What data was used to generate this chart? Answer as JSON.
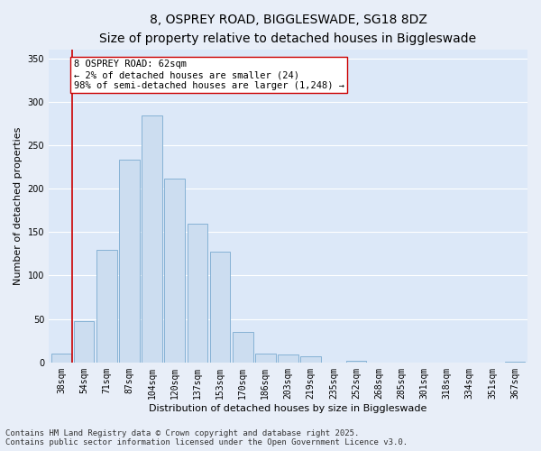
{
  "title_line1": "8, OSPREY ROAD, BIGGLESWADE, SG18 8DZ",
  "title_line2": "Size of property relative to detached houses in Biggleswade",
  "xlabel": "Distribution of detached houses by size in Biggleswade",
  "ylabel": "Number of detached properties",
  "bar_color": "#ccddf0",
  "bar_edge_color": "#7aaad0",
  "categories": [
    "38sqm",
    "54sqm",
    "71sqm",
    "87sqm",
    "104sqm",
    "120sqm",
    "137sqm",
    "153sqm",
    "170sqm",
    "186sqm",
    "203sqm",
    "219sqm",
    "235sqm",
    "252sqm",
    "268sqm",
    "285sqm",
    "301sqm",
    "318sqm",
    "334sqm",
    "351sqm",
    "367sqm"
  ],
  "values": [
    10,
    48,
    130,
    233,
    284,
    212,
    160,
    127,
    35,
    10,
    9,
    7,
    0,
    2,
    0,
    0,
    0,
    0,
    0,
    0,
    1
  ],
  "ylim": [
    0,
    360
  ],
  "yticks": [
    0,
    50,
    100,
    150,
    200,
    250,
    300,
    350
  ],
  "vline_x": 0.5,
  "vline_color": "#cc0000",
  "annotation_text": "8 OSPREY ROAD: 62sqm\n← 2% of detached houses are smaller (24)\n98% of semi-detached houses are larger (1,248) →",
  "annotation_box_color": "#ffffff",
  "annotation_box_edge": "#cc0000",
  "footer_line1": "Contains HM Land Registry data © Crown copyright and database right 2025.",
  "footer_line2": "Contains public sector information licensed under the Open Government Licence v3.0.",
  "fig_bg_color": "#e8eef8",
  "bg_color": "#dce8f8",
  "grid_color": "#ffffff",
  "title_fontsize": 10,
  "subtitle_fontsize": 9,
  "axis_label_fontsize": 8,
  "tick_fontsize": 7,
  "annotation_fontsize": 7.5,
  "footer_fontsize": 6.5
}
